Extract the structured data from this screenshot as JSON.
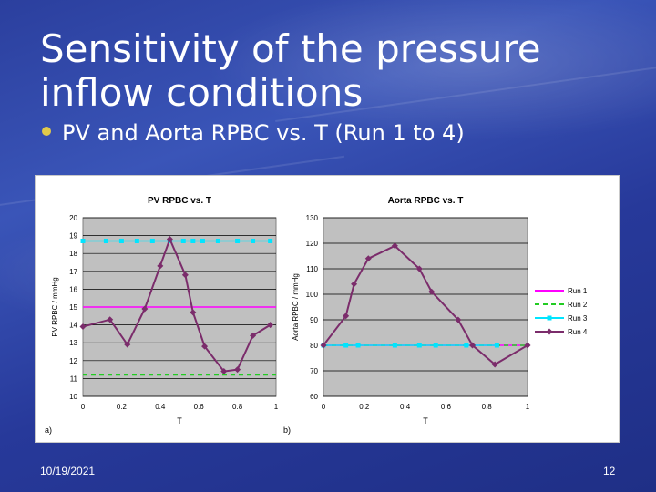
{
  "slide": {
    "title": "Sensitivity of the pressure inflow conditions",
    "bullet": "PV and Aorta RPBC vs. T (Run 1 to 4)",
    "date": "10/19/2021",
    "page_number": "12"
  },
  "colors": {
    "run1": "#ff00ff",
    "run2": "#22cc22",
    "run3": "#00e5ff",
    "run4": "#7b2c6b",
    "plot_bg": "#c0c0c0"
  },
  "chart_data": [
    {
      "type": "line",
      "panel_label": "a)",
      "title": "PV RPBC vs. T",
      "xlabel": "T",
      "ylabel": "PV RPBC / mmHg",
      "xlim": [
        0,
        1
      ],
      "ylim": [
        10,
        20
      ],
      "xticks": [
        "0",
        "0.2",
        "0.4",
        "0.6",
        "0.8",
        "1"
      ],
      "yticks": [
        "10",
        "11",
        "12",
        "13",
        "14",
        "15",
        "16",
        "17",
        "18",
        "19",
        "20"
      ],
      "grid": true,
      "series": [
        {
          "name": "Run 1",
          "x": [
            0,
            1
          ],
          "y": [
            15,
            15
          ],
          "style": "solid",
          "marker": "none"
        },
        {
          "name": "Run 2",
          "x": [
            0,
            1
          ],
          "y": [
            11.2,
            11.2
          ],
          "style": "dashed",
          "marker": "none"
        },
        {
          "name": "Run 3",
          "x": [
            0,
            0.12,
            0.2,
            0.28,
            0.36,
            0.45,
            0.52,
            0.57,
            0.62,
            0.7,
            0.8,
            0.88,
            0.97
          ],
          "y": [
            18.7,
            18.7,
            18.7,
            18.7,
            18.7,
            18.7,
            18.7,
            18.7,
            18.7,
            18.7,
            18.7,
            18.7,
            18.7
          ],
          "style": "solid",
          "marker": "square"
        },
        {
          "name": "Run 4",
          "x": [
            0,
            0.14,
            0.23,
            0.32,
            0.4,
            0.45,
            0.53,
            0.57,
            0.63,
            0.73,
            0.8,
            0.88,
            0.97
          ],
          "y": [
            13.9,
            14.3,
            12.9,
            14.9,
            17.3,
            18.8,
            16.8,
            14.7,
            12.8,
            11.4,
            11.5,
            13.4,
            14.0
          ],
          "style": "solid",
          "marker": "diamond"
        }
      ]
    },
    {
      "type": "line",
      "panel_label": "b)",
      "title": "Aorta RPBC vs. T",
      "xlabel": "T",
      "ylabel": "Aorta RPBC / mmHg",
      "xlim": [
        0,
        1
      ],
      "ylim": [
        60,
        130
      ],
      "xticks": [
        "0",
        "0.2",
        "0.4",
        "0.6",
        "0.8",
        "1"
      ],
      "yticks": [
        "60",
        "70",
        "80",
        "90",
        "100",
        "110",
        "120",
        "130"
      ],
      "grid": true,
      "legend_position": "right",
      "series": [
        {
          "name": "Run 1",
          "x": [
            0,
            1
          ],
          "y": [
            80,
            80
          ],
          "style": "solid",
          "marker": "none"
        },
        {
          "name": "Run 2",
          "x": [
            0,
            1
          ],
          "y": [
            80,
            80
          ],
          "style": "dashed",
          "marker": "none"
        },
        {
          "name": "Run 3",
          "x": [
            0,
            0.11,
            0.17,
            0.35,
            0.47,
            0.55,
            0.7,
            0.85
          ],
          "y": [
            80,
            80,
            80,
            80,
            80,
            80,
            80,
            80
          ],
          "style": "solid",
          "marker": "square"
        },
        {
          "name": "Run 4",
          "x": [
            0,
            0.11,
            0.15,
            0.22,
            0.35,
            0.47,
            0.53,
            0.66,
            0.73,
            0.84,
            1.0
          ],
          "y": [
            80,
            91.5,
            104,
            114,
            119,
            110,
            101,
            90,
            80,
            72.5,
            80
          ],
          "style": "solid",
          "marker": "diamond"
        }
      ]
    }
  ]
}
